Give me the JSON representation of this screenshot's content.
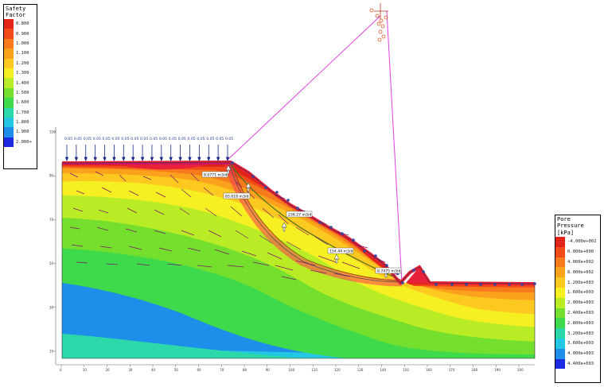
{
  "safety_legend": {
    "title": "Safety Factor",
    "entries": [
      {
        "label": "0.800",
        "color": "#e2231a"
      },
      {
        "label": "0.900",
        "color": "#f24a1a"
      },
      {
        "label": "1.000",
        "color": "#f77b1c"
      },
      {
        "label": "1.100",
        "color": "#fba21c"
      },
      {
        "label": "1.200",
        "color": "#fdc81f"
      },
      {
        "label": "1.300",
        "color": "#f6ef22"
      },
      {
        "label": "1.400",
        "color": "#b9ec25"
      },
      {
        "label": "1.500",
        "color": "#74df2c"
      },
      {
        "label": "1.600",
        "color": "#3fd94c"
      },
      {
        "label": "1.700",
        "color": "#2cd8a9"
      },
      {
        "label": "1.800",
        "color": "#22c8e3"
      },
      {
        "label": "1.900",
        "color": "#1e8eea"
      },
      {
        "label": "2.000+",
        "color": "#1d2be0"
      }
    ]
  },
  "pore_legend": {
    "title": "Pore Pressure",
    "unit": "[kPa]",
    "entries": [
      {
        "label": "-4.000e+002",
        "color": "#e2231a"
      },
      {
        "label": "0.000e+000",
        "color": "#f24a1a"
      },
      {
        "label": "4.000e+002",
        "color": "#f77b1c"
      },
      {
        "label": "8.000e+002",
        "color": "#fba21c"
      },
      {
        "label": "1.200e+003",
        "color": "#fdc81f"
      },
      {
        "label": "1.600e+003",
        "color": "#f6ef22"
      },
      {
        "label": "2.000e+003",
        "color": "#b9ec25"
      },
      {
        "label": "2.400e+003",
        "color": "#74df2c"
      },
      {
        "label": "2.800e+003",
        "color": "#3fd94c"
      },
      {
        "label": "3.200e+003",
        "color": "#2cd8a9"
      },
      {
        "label": "3.600e+003",
        "color": "#22c8e3"
      },
      {
        "label": "4.000e+003",
        "color": "#1e8eea"
      },
      {
        "label": "4.400e+003",
        "color": "#1d2be0"
      }
    ]
  },
  "seepage_values": [
    "0.05",
    "0.05",
    "0.05",
    "0.05",
    "0.05",
    "0.05",
    "0.05",
    "0.05",
    "0.05",
    "0.05",
    "0.05",
    "0.05",
    "0.05",
    "0.05",
    "0.05",
    "0.05",
    "0.05",
    "0.05"
  ],
  "flow_labels": {
    "f1": "8.0771 m3/d",
    "f2": "83.618 m3/d",
    "f3": "236.27 m3/d",
    "f4": "154.44 m3/d",
    "f5": "8.7475 m3/d"
  },
  "axis": {
    "x_ticks": [
      "0",
      "10",
      "20",
      "30",
      "40",
      "50",
      "60",
      "70",
      "80",
      "90",
      "100",
      "110",
      "120",
      "130",
      "140",
      "150",
      "160",
      "170",
      "180",
      "190",
      "200"
    ],
    "y_ticks": [
      "10",
      "30",
      "50",
      "70",
      "90",
      "110"
    ]
  }
}
